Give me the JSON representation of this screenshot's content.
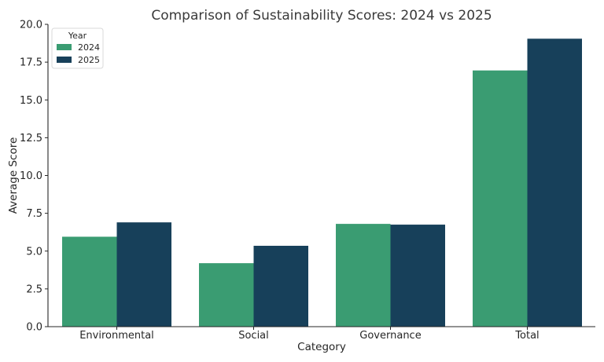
{
  "chart_data": {
    "type": "bar",
    "title": "Comparison of Sustainability Scores: 2024 vs 2025",
    "xlabel": "Category",
    "ylabel": "Average Score",
    "categories": [
      "Environmental",
      "Social",
      "Governance",
      "Total"
    ],
    "series": [
      {
        "name": "2024",
        "color": "#3a9c72",
        "values": [
          5.95,
          4.2,
          6.8,
          16.95
        ]
      },
      {
        "name": "2025",
        "color": "#17405a",
        "values": [
          6.9,
          5.35,
          6.75,
          19.05
        ]
      }
    ],
    "ylim": [
      0,
      20
    ],
    "yticks": [
      "0.0",
      "2.5",
      "5.0",
      "7.5",
      "10.0",
      "12.5",
      "15.0",
      "17.5",
      "20.0"
    ],
    "grid": false,
    "legend": {
      "title": "Year",
      "placement": "top-left"
    }
  }
}
